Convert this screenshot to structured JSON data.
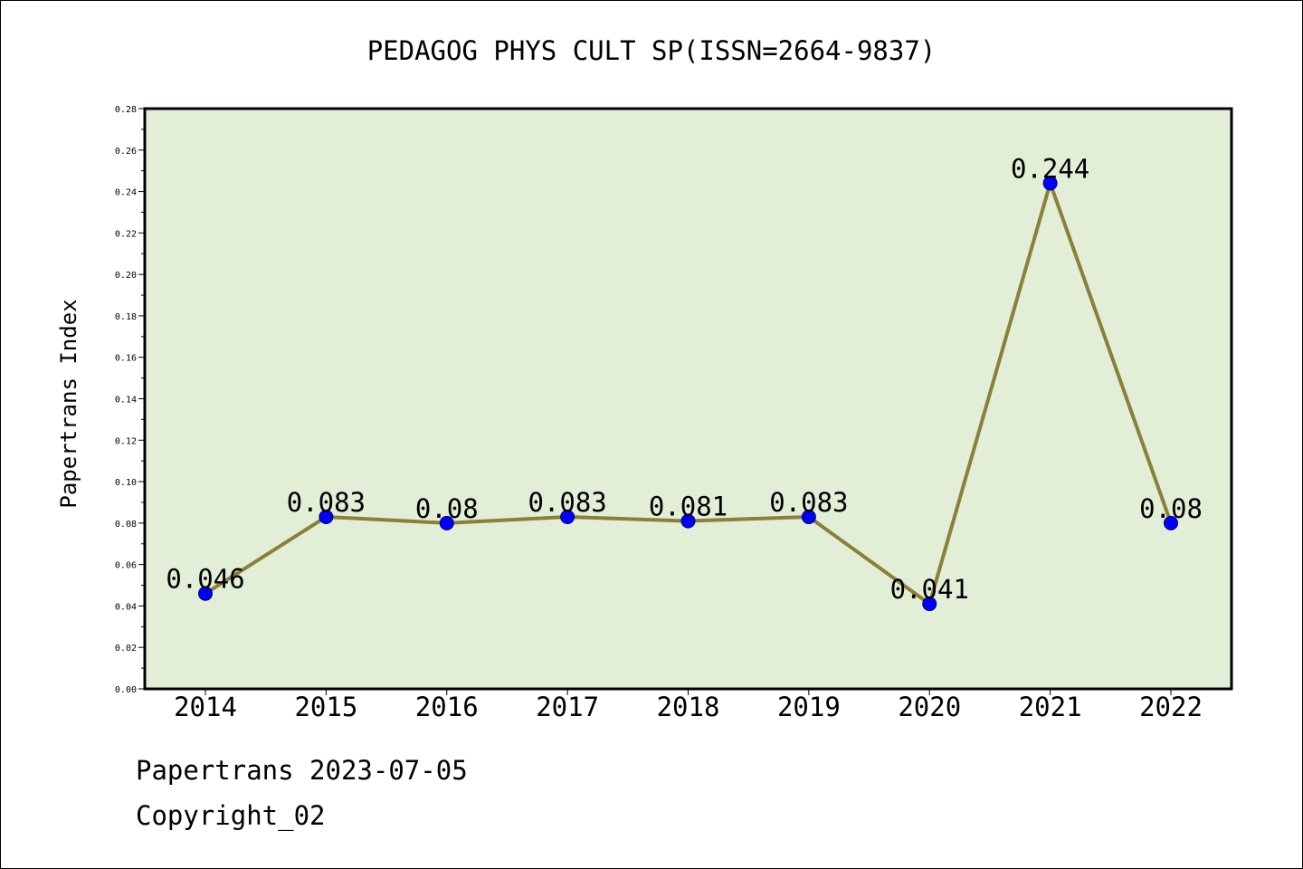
{
  "chart_data": {
    "type": "line",
    "title": "PEDAGOG PHYS CULT SP(ISSN=2664-9837)",
    "xlabel": "",
    "ylabel": "Papertrans Index",
    "categories": [
      "2014",
      "2015",
      "2016",
      "2017",
      "2018",
      "2019",
      "2020",
      "2021",
      "2022"
    ],
    "series": [
      {
        "values": [
          0.046,
          0.083,
          0.08,
          0.083,
          0.081,
          0.083,
          0.041,
          0.244,
          0.08
        ]
      }
    ],
    "data_labels": [
      "0.046",
      "0.083",
      "0.08",
      "0.083",
      "0.081",
      "0.083",
      "0.041",
      "0.244",
      "0.08"
    ],
    "ylim": [
      0,
      0.28
    ],
    "yticks": [
      "0.00",
      "0.02",
      "0.04",
      "0.06",
      "0.08",
      "0.10",
      "0.12",
      "0.14",
      "0.16",
      "0.18",
      "0.20",
      "0.22",
      "0.24",
      "0.26",
      "0.28"
    ],
    "grid": false,
    "legend": "none",
    "colors": {
      "plot_background": "#e2efd6",
      "line": "#8b7f3a",
      "marker": "#0000ff",
      "marker_edge": "#000066"
    }
  },
  "footer": {
    "date_text": "Papertrans 2023-07-05",
    "copyright_text": "Copyright_02"
  }
}
